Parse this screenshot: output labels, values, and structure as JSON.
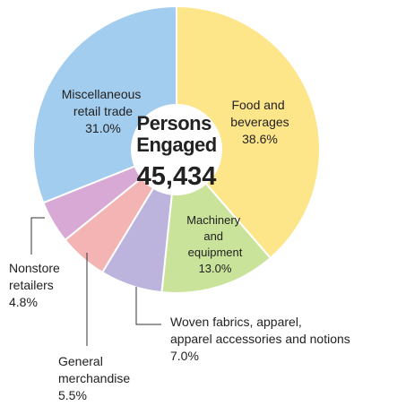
{
  "chart_data": {
    "type": "donut",
    "center_title": "Persons Engaged",
    "center_value": "45,434",
    "categories": [
      "Food and beverages",
      "Machinery and equipment",
      "Woven fabrics, apparel, apparel accessories and notions",
      "General merchandise",
      "Nonstore retailers",
      "Miscellaneous retail trade"
    ],
    "values": [
      38.6,
      13.0,
      7.0,
      5.5,
      4.8,
      31.0
    ],
    "value_labels": [
      "38.6%",
      "13.0%",
      "7.0%",
      "5.5%",
      "4.8%",
      "31.0%"
    ],
    "colors": [
      "#fde58a",
      "#c9e39a",
      "#bcb4dc",
      "#f4b4b4",
      "#d9a9d5",
      "#a3cdee"
    ]
  }
}
